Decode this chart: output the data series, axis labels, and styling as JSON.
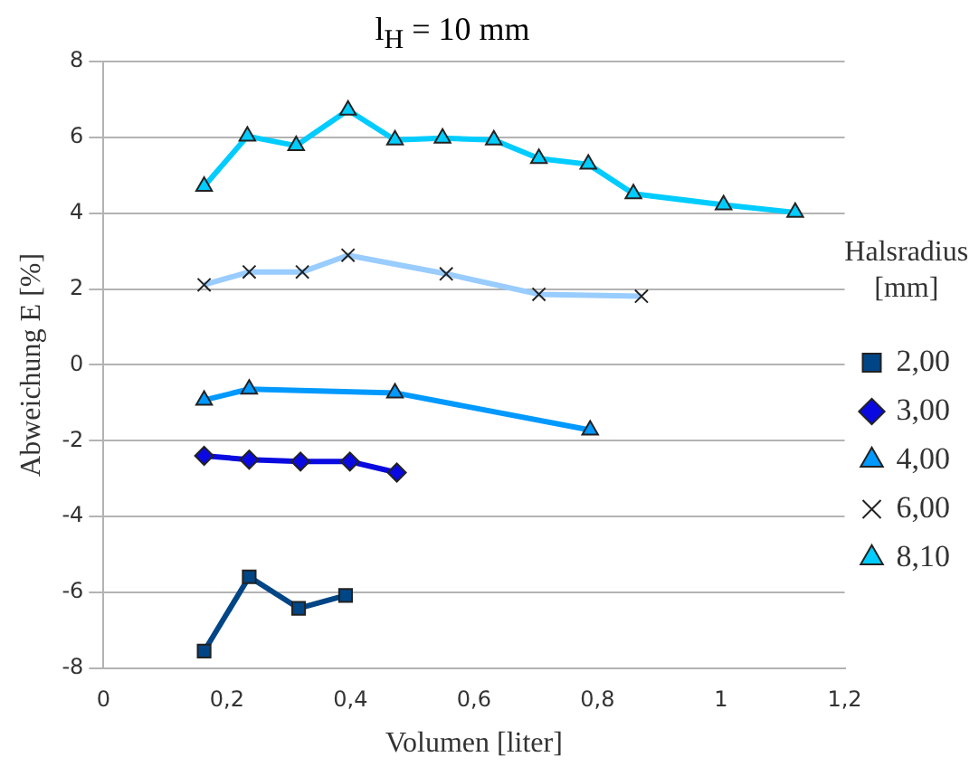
{
  "chart_data": {
    "type": "line",
    "title": "l$_{H}$ = 10 mm",
    "xlabel": "Volumen [liter]",
    "ylabel": "Abweichung E [%]",
    "legend_title": "Halsradius [mm]",
    "legend": "right",
    "grid": "y",
    "xlim": [
      0,
      1.2
    ],
    "xticks": [
      0,
      {
        "value": 0.2,
        "label": "0,2"
      },
      {
        "value": 0.4,
        "label": "0,4"
      },
      {
        "value": 0.6,
        "label": "0,6"
      },
      {
        "value": 0.8,
        "label": "0,8"
      },
      1,
      {
        "value": 1.2,
        "label": "1,2"
      }
    ],
    "ylim": [
      -8,
      8
    ],
    "yticks": [
      -8,
      -6,
      -4,
      -2,
      0,
      2,
      4,
      6,
      8
    ],
    "series": [
      {
        "name": "2,00",
        "color": "#004586",
        "marker": "square",
        "x": [
          0.163,
          0.236,
          0.316,
          0.392
        ],
        "values": [
          -7.55,
          -5.59,
          -6.42,
          -6.08
        ]
      },
      {
        "name": "3,00",
        "color": "#0a0ae0",
        "marker": "diamond",
        "x": [
          0.163,
          0.236,
          0.319,
          0.399,
          0.475
        ],
        "values": [
          -2.4,
          -2.5,
          -2.55,
          -2.55,
          -2.84
        ]
      },
      {
        "name": "4,00",
        "color": "#0099ff",
        "marker": "triangle",
        "x": [
          0.163,
          0.236,
          0.472,
          0.788
        ],
        "values": [
          -0.93,
          -0.64,
          -0.74,
          -1.72
        ]
      },
      {
        "name": "6,00",
        "color": "#99ccff",
        "marker": "cross",
        "x": [
          0.163,
          0.236,
          0.322,
          0.396,
          0.555,
          0.705,
          0.871
        ],
        "values": [
          2.11,
          2.45,
          2.45,
          2.89,
          2.4,
          1.86,
          1.81
        ]
      },
      {
        "name": "8,10",
        "color": "#00ccff",
        "marker": "triangle",
        "x": [
          0.163,
          0.233,
          0.312,
          0.396,
          0.472,
          0.549,
          0.632,
          0.705,
          0.785,
          0.858,
          1.004,
          1.12
        ],
        "values": [
          4.71,
          6.03,
          5.78,
          6.72,
          5.93,
          5.98,
          5.93,
          5.44,
          5.29,
          4.51,
          4.22,
          4.02
        ]
      }
    ]
  }
}
